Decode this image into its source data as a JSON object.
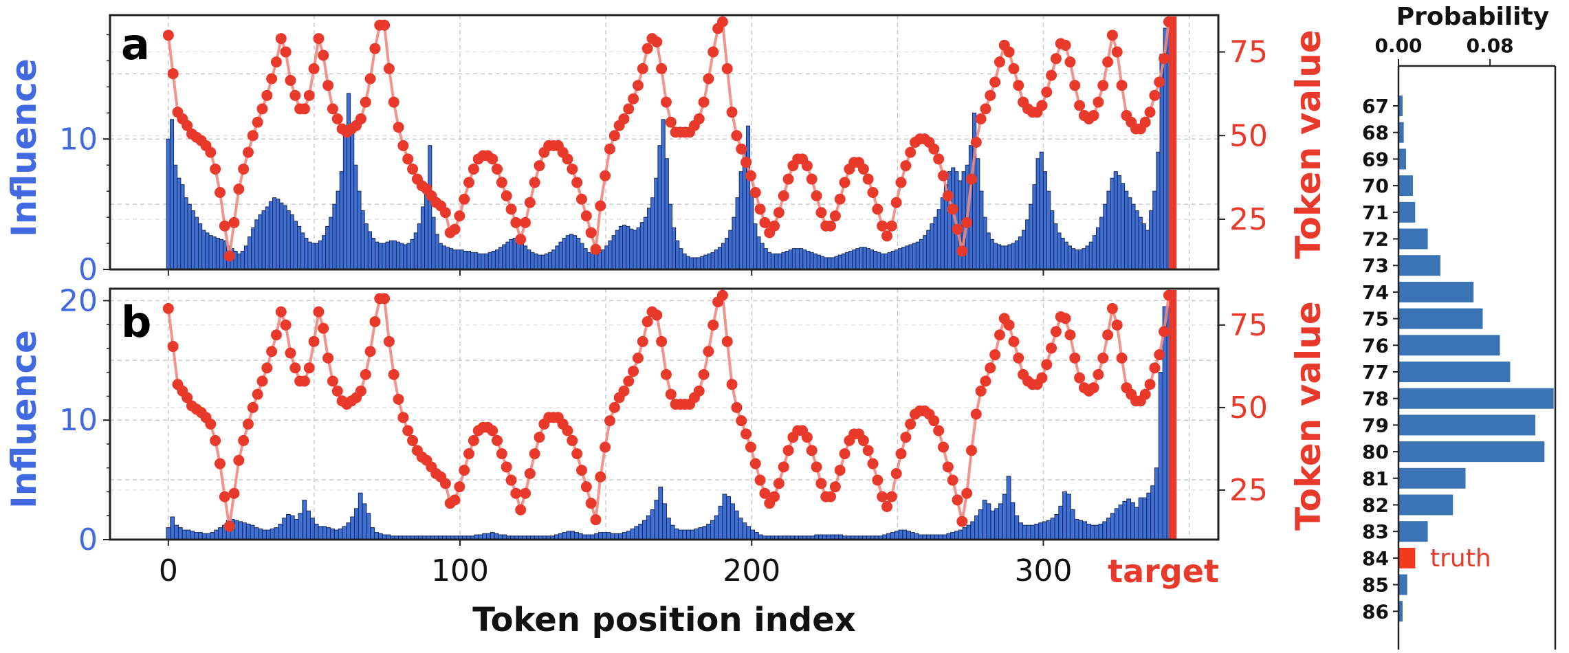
{
  "colors": {
    "influence": "#3d6fd6",
    "influence_edge": "#1a2a55",
    "token": "#e8392b",
    "token_line": "#f08a80",
    "prob_bar": "#3a74b4",
    "truth": "#f23a1e"
  },
  "chart_data": [
    {
      "type": "bar",
      "panel_label": "a",
      "ylabel_left": "Influence",
      "ylabel_right": "Token value",
      "yticks_left": [
        "0",
        "10"
      ],
      "yticks_right": [
        "25",
        "50",
        "75"
      ],
      "ylim_left": [
        0,
        19.5
      ],
      "ylim_right": [
        10,
        86
      ],
      "xlim": [
        -20,
        360
      ],
      "grid": true,
      "series": [
        {
          "name": "Influence",
          "kind": "bar",
          "values": [
            10.0,
            11.5,
            8.0,
            7.0,
            6.5,
            5.5,
            5.0,
            4.5,
            4.0,
            3.5,
            3.0,
            2.8,
            2.6,
            2.5,
            2.4,
            2.3,
            2.2,
            1.8,
            1.6,
            1.4,
            1.2,
            1.4,
            1.8,
            2.5,
            3.2,
            3.8,
            4.2,
            4.5,
            4.8,
            5.2,
            5.5,
            5.4,
            5.1,
            4.9,
            4.5,
            4.2,
            3.7,
            3.3,
            2.8,
            2.4,
            2.1,
            2.0,
            2.0,
            2.2,
            2.6,
            3.3,
            4.0,
            5.0,
            6.0,
            7.5,
            10.5,
            13.5,
            11.0,
            8.0,
            6.0,
            4.5,
            3.5,
            2.9,
            2.4,
            2.1,
            2.0,
            2.0,
            2.1,
            2.2,
            2.2,
            2.1,
            2.0,
            1.9,
            2.0,
            2.3,
            2.8,
            3.5,
            4.8,
            6.0,
            9.5,
            4.0,
            2.7,
            2.0,
            1.8,
            1.7,
            1.6,
            1.5,
            1.5,
            1.5,
            1.4,
            1.4,
            1.3,
            1.3,
            1.2,
            1.2,
            1.2,
            1.3,
            1.4,
            1.5,
            1.7,
            1.9,
            2.1,
            2.3,
            2.4,
            2.3,
            2.1,
            1.8,
            1.5,
            1.3,
            1.2,
            1.1,
            1.1,
            1.2,
            1.3,
            1.5,
            1.8,
            2.1,
            2.4,
            2.6,
            2.7,
            2.6,
            2.4,
            2.0,
            1.6,
            1.3,
            1.2,
            1.2,
            1.3,
            1.5,
            1.8,
            2.2,
            2.6,
            3.0,
            3.3,
            3.4,
            3.3,
            3.1,
            3.0,
            3.2,
            3.6,
            4.0,
            4.7,
            5.5,
            7.0,
            9.5,
            11.5,
            8.5,
            5.0,
            3.2,
            2.2,
            1.6,
            1.2,
            1.0,
            0.9,
            0.9,
            0.9,
            1.0,
            1.1,
            1.2,
            1.3,
            1.5,
            1.7,
            2.0,
            2.4,
            3.0,
            4.0,
            5.5,
            7.5,
            9.0,
            11.0,
            6.0,
            3.5,
            2.5,
            2.0,
            1.6,
            1.3,
            1.2,
            1.2,
            1.2,
            1.3,
            1.4,
            1.5,
            1.6,
            1.6,
            1.6,
            1.5,
            1.4,
            1.3,
            1.2,
            1.1,
            1.0,
            0.9,
            0.9,
            0.9,
            1.0,
            1.1,
            1.2,
            1.3,
            1.4,
            1.5,
            1.6,
            1.7,
            1.7,
            1.6,
            1.5,
            1.4,
            1.3,
            1.2,
            1.2,
            1.3,
            1.4,
            1.5,
            1.6,
            1.7,
            1.8,
            1.9,
            2.0,
            2.1,
            2.3,
            2.6,
            3.0,
            3.5,
            4.0,
            4.6,
            5.5,
            6.5,
            7.5,
            7.8,
            7.5,
            6.8,
            7.5,
            8.0,
            9.5,
            12.0,
            8.5,
            6.0,
            4.0,
            2.8,
            2.3,
            2.0,
            1.9,
            1.8,
            1.8,
            1.9,
            2.0,
            2.2,
            2.5,
            3.0,
            3.8,
            5.0,
            6.5,
            8.5,
            9.0,
            7.5,
            6.0,
            4.5,
            3.5,
            2.8,
            2.4,
            2.1,
            1.8,
            1.6,
            1.5,
            1.5,
            1.6,
            1.8,
            2.1,
            2.6,
            3.2,
            4.0,
            5.0,
            6.0,
            7.0,
            7.5,
            7.2,
            6.6,
            6.0,
            5.5,
            5.0,
            4.5,
            4.0,
            3.5,
            3.0,
            4.5,
            6.0,
            9.0,
            16.5,
            18.5,
            18.5
          ]
        },
        {
          "name": "Token value",
          "kind": "line",
          "values": [
            80.0,
            68.5,
            57.0,
            55.0,
            53.0,
            50.5,
            49.5,
            48.5,
            47.0,
            45.0,
            40.0,
            33.0,
            23.0,
            14.0,
            24.0,
            34.0,
            40.0,
            45.0,
            50.0,
            54.0,
            58.0,
            62.0,
            67.0,
            72.0,
            79.0,
            75.0,
            66.5,
            62.0,
            58.0,
            58.0,
            62.0,
            70.0,
            79.0,
            74.0,
            65.0,
            58.0,
            55.0,
            52.0,
            51.0,
            52.0,
            53.0,
            55.0,
            60.0,
            67.0,
            76.0,
            83.0,
            83.0,
            70.0,
            60.0,
            52.5,
            47.0,
            43.0,
            40.0,
            37.0,
            35.0,
            34.0,
            32.0,
            30.0,
            29.0,
            27.0,
            21.0,
            22.0,
            26.0,
            31.0,
            36.0,
            40.0,
            43.0,
            44.0,
            44.0,
            43.0,
            40.0,
            36.0,
            32.0,
            28.0,
            24.0,
            19.0,
            24.0,
            30.0,
            36.0,
            41.0,
            45.0,
            47.0,
            47.0,
            47.0,
            45.0,
            43.0,
            40.0,
            36.0,
            31.0,
            26.0,
            21.0,
            16.0,
            29.0,
            38.0,
            46.0,
            50.0,
            53.0,
            55.0,
            58.0,
            61.0,
            65.0,
            70.0,
            76.0,
            79.0,
            78.0,
            70.0,
            60.0,
            54.0,
            51.0,
            51.0,
            51.0,
            51.0,
            53.0,
            55.0,
            60.0,
            67.0,
            75.0,
            82.0,
            84.0,
            70.0,
            57.0,
            50.0,
            46.0,
            42.0,
            38.0,
            33.0,
            28.0,
            24.0,
            21.0,
            23.0,
            27.0,
            32.0,
            37.0,
            41.0,
            43.0,
            43.0,
            41.0,
            37.0,
            32.0,
            27.0,
            23.0,
            23.0,
            26.0,
            31.0,
            36.0,
            40.0,
            42.0,
            42.0,
            40.0,
            37.0,
            33.0,
            28.0,
            23.0,
            20.0,
            23.0,
            30.0,
            36.0,
            41.0,
            45.0,
            48.0,
            49.0,
            49.0,
            48.0,
            46.0,
            43.0,
            38.0,
            32.0,
            28.0,
            22.0,
            15.5,
            24.0,
            37.0,
            48.0,
            55.0,
            58.0,
            62.0,
            66.0,
            72.0,
            77.0,
            75.0,
            70.0,
            65.0,
            60.0,
            58.0,
            57.0,
            57.0,
            59.0,
            63.0,
            68.0,
            73.0,
            77.5,
            77.0,
            72.0,
            65.0,
            59.0,
            56.0,
            55.0,
            56.0,
            60.0,
            65.0,
            72.0,
            80.0,
            75.0,
            65.0,
            56.0,
            54.0,
            52.0,
            52.0,
            54.0,
            57.0,
            62.0,
            66.0,
            73.0,
            84.0
          ]
        }
      ]
    },
    {
      "type": "bar",
      "panel_label": "b",
      "ylabel_left": "Influence",
      "ylabel_right": "Token value",
      "yticks_left": [
        "0",
        "10",
        "20"
      ],
      "yticks_right": [
        "25",
        "50",
        "75"
      ],
      "ylim_left": [
        0,
        21
      ],
      "ylim_right": [
        10,
        86
      ],
      "xlim": [
        -20,
        360
      ],
      "xlabel": "Token position index",
      "xticks": [
        "0",
        "100",
        "200",
        "300"
      ],
      "target_label": "target",
      "grid": true,
      "series": [
        {
          "name": "Influence",
          "kind": "bar",
          "values": [
            1.0,
            1.9,
            1.2,
            1.0,
            0.8,
            0.8,
            0.7,
            0.6,
            0.6,
            0.5,
            0.5,
            0.6,
            0.8,
            1.0,
            1.2,
            1.6,
            1.7,
            1.6,
            1.5,
            1.4,
            1.3,
            1.2,
            1.0,
            0.9,
            0.8,
            0.8,
            0.9,
            1.0,
            1.3,
            1.8,
            2.1,
            2.0,
            1.7,
            2.2,
            3.3,
            2.4,
            1.8,
            1.3,
            1.1,
            1.1,
            1.0,
            0.9,
            0.8,
            0.9,
            1.1,
            1.4,
            1.9,
            2.6,
            3.9,
            3.0,
            2.2,
            1.0,
            0.6,
            0.5,
            0.4,
            0.4,
            0.3,
            0.3,
            0.3,
            0.3,
            0.3,
            0.3,
            0.3,
            0.3,
            0.3,
            0.3,
            0.3,
            0.3,
            0.3,
            0.3,
            0.3,
            0.3,
            0.3,
            0.3,
            0.3,
            0.3,
            0.3,
            0.4,
            0.4,
            0.5,
            0.5,
            0.6,
            0.5,
            0.4,
            0.4,
            0.3,
            0.3,
            0.3,
            0.3,
            0.3,
            0.3,
            0.3,
            0.3,
            0.3,
            0.3,
            0.3,
            0.3,
            0.4,
            0.5,
            0.6,
            0.7,
            0.7,
            0.6,
            0.5,
            0.4,
            0.4,
            0.4,
            0.5,
            0.6,
            0.6,
            0.6,
            0.5,
            0.5,
            0.5,
            0.6,
            0.7,
            0.9,
            1.1,
            1.3,
            1.6,
            2.0,
            2.5,
            3.3,
            4.4,
            3.0,
            1.8,
            1.2,
            0.9,
            0.8,
            0.8,
            0.8,
            0.8,
            0.9,
            1.0,
            1.1,
            1.3,
            1.6,
            2.0,
            2.8,
            3.8,
            3.6,
            3.0,
            2.4,
            1.8,
            1.4,
            1.1,
            0.8,
            0.6,
            0.4,
            0.3,
            0.3,
            0.3,
            0.3,
            0.3,
            0.3,
            0.3,
            0.3,
            0.3,
            0.3,
            0.3,
            0.3,
            0.3,
            0.4,
            0.4,
            0.4,
            0.4,
            0.4,
            0.4,
            0.4,
            0.3,
            0.3,
            0.3,
            0.3,
            0.3,
            0.3,
            0.3,
            0.3,
            0.3,
            0.3,
            0.4,
            0.5,
            0.6,
            0.7,
            0.8,
            0.8,
            0.7,
            0.6,
            0.5,
            0.4,
            0.4,
            0.4,
            0.4,
            0.4,
            0.4,
            0.4,
            0.5,
            0.6,
            0.7,
            0.8,
            1.0,
            1.2,
            1.5,
            2.0,
            2.5,
            3.3,
            3.0,
            2.4,
            2.6,
            3.0,
            3.8,
            5.3,
            3.1,
            2.0,
            1.4,
            1.2,
            1.2,
            1.2,
            1.3,
            1.4,
            1.5,
            1.6,
            1.8,
            2.1,
            2.8,
            4.0,
            3.8,
            2.5,
            1.7,
            1.6,
            1.5,
            1.3,
            1.2,
            1.2,
            1.3,
            1.5,
            1.8,
            2.2,
            2.6,
            2.9,
            3.2,
            3.4,
            3.1,
            2.7,
            3.5,
            3.5,
            3.9,
            4.5,
            6.0,
            14.0,
            19.5,
            19.5
          ]
        },
        {
          "name": "Token value",
          "kind": "line",
          "values": [
            80.0,
            68.5,
            57.0,
            55.0,
            53.0,
            50.5,
            49.5,
            48.5,
            47.0,
            45.0,
            40.0,
            33.0,
            23.0,
            14.0,
            24.0,
            34.0,
            40.0,
            45.0,
            50.0,
            54.0,
            58.0,
            62.0,
            67.0,
            72.0,
            79.0,
            75.0,
            66.5,
            62.0,
            58.0,
            58.0,
            62.0,
            70.0,
            79.0,
            74.0,
            65.0,
            58.0,
            55.0,
            52.0,
            51.0,
            52.0,
            53.0,
            55.0,
            60.0,
            67.0,
            76.0,
            83.0,
            83.0,
            70.0,
            60.0,
            52.5,
            47.0,
            43.0,
            40.0,
            37.0,
            35.0,
            34.0,
            32.0,
            30.0,
            29.0,
            27.0,
            21.0,
            22.0,
            26.0,
            31.0,
            36.0,
            40.0,
            43.0,
            44.0,
            44.0,
            43.0,
            40.0,
            36.0,
            32.0,
            28.0,
            24.0,
            19.0,
            24.0,
            30.0,
            36.0,
            41.0,
            45.0,
            47.0,
            47.0,
            47.0,
            45.0,
            43.0,
            40.0,
            36.0,
            31.0,
            26.0,
            21.0,
            16.0,
            29.0,
            38.0,
            46.0,
            50.0,
            53.0,
            55.0,
            58.0,
            61.0,
            65.0,
            70.0,
            76.0,
            79.0,
            78.0,
            70.0,
            60.0,
            54.0,
            51.0,
            51.0,
            51.0,
            51.0,
            53.0,
            55.0,
            60.0,
            67.0,
            75.0,
            82.0,
            84.0,
            70.0,
            57.0,
            50.0,
            46.0,
            42.0,
            38.0,
            33.0,
            28.0,
            24.0,
            21.0,
            23.0,
            27.0,
            32.0,
            37.0,
            41.0,
            43.0,
            43.0,
            41.0,
            37.0,
            32.0,
            27.0,
            23.0,
            23.0,
            26.0,
            31.0,
            36.0,
            40.0,
            42.0,
            42.0,
            40.0,
            37.0,
            33.0,
            28.0,
            23.0,
            20.0,
            23.0,
            30.0,
            36.0,
            41.0,
            45.0,
            48.0,
            49.0,
            49.0,
            48.0,
            46.0,
            43.0,
            38.0,
            32.0,
            28.0,
            22.0,
            15.5,
            24.0,
            37.0,
            48.0,
            55.0,
            58.0,
            62.0,
            66.0,
            72.0,
            77.0,
            75.0,
            70.0,
            65.0,
            60.0,
            58.0,
            57.0,
            57.0,
            59.0,
            63.0,
            68.0,
            73.0,
            77.5,
            77.0,
            72.0,
            65.0,
            59.0,
            56.0,
            55.0,
            56.0,
            60.0,
            65.0,
            72.0,
            80.0,
            75.0,
            65.0,
            56.0,
            54.0,
            52.0,
            52.0,
            54.0,
            57.0,
            62.0,
            66.0,
            73.0,
            84.0
          ]
        }
      ]
    },
    {
      "type": "bar",
      "orientation": "horizontal",
      "title": "Probability",
      "xticks": [
        "0.00",
        "0.08"
      ],
      "xlim": [
        0,
        0.137
      ],
      "categories": [
        "67",
        "68",
        "69",
        "70",
        "71",
        "72",
        "73",
        "74",
        "75",
        "76",
        "77",
        "78",
        "79",
        "80",
        "81",
        "82",
        "83",
        "84",
        "85",
        "86"
      ],
      "values": [
        0.003,
        0.004,
        0.006,
        0.012,
        0.014,
        0.025,
        0.036,
        0.065,
        0.073,
        0.088,
        0.097,
        0.135,
        0.119,
        0.127,
        0.058,
        0.047,
        0.025,
        0.014,
        0.007,
        0.003
      ],
      "truth_category": "84",
      "truth_label": "truth"
    }
  ]
}
